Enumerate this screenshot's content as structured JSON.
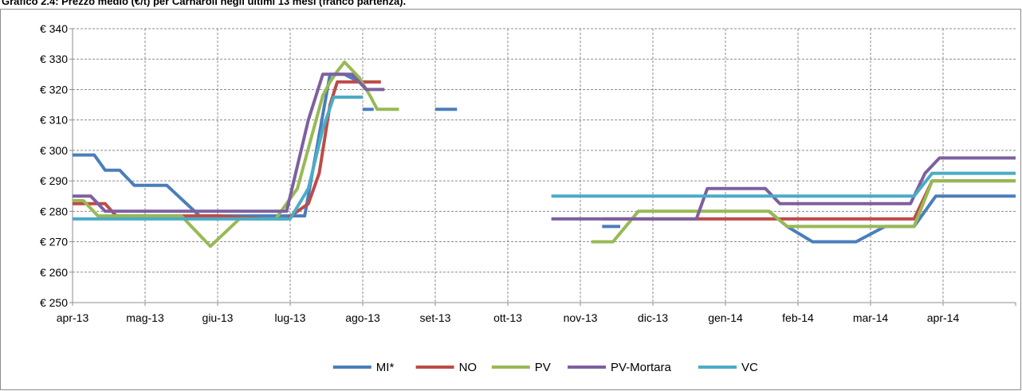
{
  "title": "Grafico 2.4: Prezzo medio (€/t) per Carnaroli negli ultimi 13 mesi (franco partenza).",
  "chart_data": {
    "type": "line",
    "y_tick_prefix": "€ ",
    "ylim": [
      250,
      340
    ],
    "y_ticks": [
      250,
      260,
      270,
      280,
      290,
      300,
      310,
      320,
      330,
      340
    ],
    "x_ticks": [
      "apr-13",
      "mag-13",
      "giu-13",
      "lug-13",
      "ago-13",
      "set-13",
      "ott-13",
      "nov-13",
      "dic-13",
      "gen-14",
      "feb-14",
      "mar-14",
      "apr-14"
    ],
    "x_range_months": [
      0,
      13
    ],
    "grid": true,
    "legend_position": "bottom",
    "series": [
      {
        "name": "MI*",
        "color": "#4a7ebb",
        "segments": [
          [
            [
              0,
              298.5
            ],
            [
              0.3,
              298.5
            ],
            [
              0.45,
              293.5
            ],
            [
              0.65,
              293.5
            ],
            [
              0.85,
              288.5
            ],
            [
              1.3,
              288.5
            ],
            [
              1.75,
              278.5
            ],
            [
              3.2,
              278.5
            ],
            [
              3.55,
              325
            ],
            [
              3.75,
              325
            ],
            [
              3.95,
              322.5
            ],
            [
              4.05,
              322.5
            ]
          ],
          [
            [
              4.0,
              313.5
            ],
            [
              4.15,
              313.5
            ]
          ],
          [
            [
              5.0,
              313.5
            ],
            [
              5.3,
              313.5
            ]
          ],
          [
            [
              7.3,
              275
            ],
            [
              7.55,
              275
            ]
          ],
          [
            [
              9.6,
              280
            ],
            [
              9.85,
              275
            ],
            [
              10.2,
              270
            ],
            [
              10.8,
              270
            ],
            [
              11.2,
              275
            ],
            [
              11.6,
              275
            ],
            [
              11.9,
              285
            ],
            [
              13.0,
              285
            ]
          ]
        ]
      },
      {
        "name": "NO",
        "color": "#be4b48",
        "segments": [
          [
            [
              0,
              282.5
            ],
            [
              0.45,
              282.5
            ],
            [
              0.6,
              278.5
            ],
            [
              2.0,
              278.5
            ],
            [
              2.7,
              277.5
            ],
            [
              2.95,
              277.5
            ],
            [
              3.25,
              282.5
            ],
            [
              3.4,
              292.5
            ],
            [
              3.55,
              315
            ],
            [
              3.65,
              322.5
            ],
            [
              4.25,
              322.5
            ]
          ],
          [
            [
              7.3,
              277.5
            ],
            [
              11.6,
              277.5
            ],
            [
              11.85,
              290
            ],
            [
              13.0,
              290
            ]
          ]
        ]
      },
      {
        "name": "PV",
        "color": "#98b954",
        "segments": [
          [
            [
              0,
              283.5
            ],
            [
              0.15,
              283.5
            ],
            [
              0.35,
              278.5
            ],
            [
              1.5,
              278.5
            ],
            [
              1.9,
              268.5
            ],
            [
              2.3,
              277.5
            ],
            [
              2.8,
              277.5
            ],
            [
              3.1,
              287.5
            ],
            [
              3.3,
              305
            ],
            [
              3.45,
              318
            ],
            [
              3.55,
              322.5
            ],
            [
              3.65,
              326
            ],
            [
              3.75,
              329
            ],
            [
              3.95,
              324
            ],
            [
              4.1,
              318
            ],
            [
              4.2,
              313.5
            ],
            [
              4.5,
              313.5
            ]
          ],
          [
            [
              7.15,
              270
            ],
            [
              7.45,
              270
            ],
            [
              7.8,
              280
            ],
            [
              9.6,
              280
            ],
            [
              9.85,
              275
            ],
            [
              11.6,
              275
            ],
            [
              11.85,
              290
            ],
            [
              13.0,
              290
            ]
          ]
        ]
      },
      {
        "name": "PV-Mortara",
        "color": "#7d60a0",
        "segments": [
          [
            [
              0,
              285
            ],
            [
              0.25,
              285
            ],
            [
              0.45,
              280
            ],
            [
              2.95,
              280
            ],
            [
              3.05,
              290
            ],
            [
              3.25,
              310
            ],
            [
              3.45,
              325
            ],
            [
              3.85,
              325
            ],
            [
              4.05,
              320
            ],
            [
              4.3,
              320
            ]
          ],
          [
            [
              6.6,
              277.5
            ],
            [
              8.6,
              277.5
            ],
            [
              8.75,
              287.5
            ],
            [
              9.55,
              287.5
            ],
            [
              9.75,
              282.5
            ],
            [
              11.55,
              282.5
            ],
            [
              11.75,
              292.5
            ],
            [
              11.95,
              297.5
            ],
            [
              13.0,
              297.5
            ]
          ]
        ]
      },
      {
        "name": "VC",
        "color": "#4bacc6",
        "segments": [
          [
            [
              0,
              277.5
            ],
            [
              3.0,
              277.5
            ],
            [
              3.25,
              287.5
            ],
            [
              3.45,
              307
            ],
            [
              3.6,
              317.5
            ],
            [
              4.0,
              317.5
            ]
          ],
          [
            [
              6.6,
              285
            ],
            [
              11.6,
              285
            ],
            [
              11.85,
              292.5
            ],
            [
              13.0,
              292.5
            ]
          ]
        ]
      }
    ]
  }
}
